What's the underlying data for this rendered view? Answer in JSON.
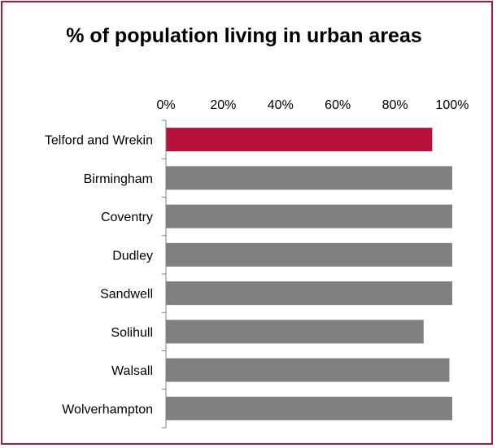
{
  "chart_data": {
    "type": "bar",
    "orientation": "horizontal",
    "title": "% of population living in urban areas",
    "categories": [
      "Telford and Wrekin",
      "Birmingham",
      "Coventry",
      "Dudley",
      "Sandwell",
      "Solihull",
      "Walsall",
      "Wolverhampton"
    ],
    "values": [
      93,
      100,
      100,
      100,
      100,
      90,
      99,
      100
    ],
    "value_unit": "%",
    "xlim": [
      0,
      100
    ],
    "x_ticks": [
      "0%",
      "20%",
      "40%",
      "60%",
      "80%",
      "100%"
    ],
    "x_axis_position": "top",
    "grid": false,
    "legend": "none",
    "highlight_category": "Telford and Wrekin",
    "colors": {
      "highlight": "#b8123a",
      "default": "#808080",
      "frame": "#b3173a"
    }
  }
}
